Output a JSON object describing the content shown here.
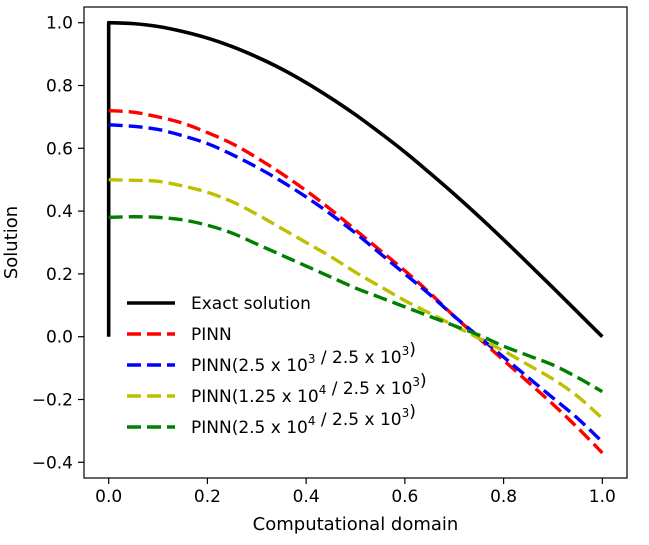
{
  "chart_data": {
    "type": "line",
    "title": "",
    "xlabel": "Computational domain",
    "ylabel": "Solution",
    "xlim": [
      -0.05,
      1.05
    ],
    "ylim": [
      -0.45,
      1.05
    ],
    "xticks": [
      0.0,
      0.2,
      0.4,
      0.6,
      0.8,
      1.0
    ],
    "xtick_labels": [
      "0.0",
      "0.2",
      "0.4",
      "0.6",
      "0.8",
      "1.0"
    ],
    "yticks": [
      -0.4,
      -0.2,
      0.0,
      0.2,
      0.4,
      0.6,
      0.8,
      1.0
    ],
    "ytick_labels": [
      "−0.4",
      "−0.2",
      "0.0",
      "0.2",
      "0.4",
      "0.6",
      "0.8",
      "1.0"
    ],
    "grid": false,
    "legend_position": "lower-left",
    "series": [
      {
        "name": "Exact solution",
        "label_parts": {
          "pre": "Exact solution",
          "sup1": "",
          "mid": "",
          "sup2": "",
          "post": ""
        },
        "color": "#000000",
        "style": "solid",
        "x": [
          0.0,
          0.0,
          0.05,
          0.1,
          0.15,
          0.2,
          0.25,
          0.3,
          0.35,
          0.4,
          0.45,
          0.5,
          0.55,
          0.6,
          0.65,
          0.7,
          0.75,
          0.8,
          0.85,
          0.9,
          0.95,
          1.0
        ],
        "y": [
          0.0,
          1.0,
          0.997,
          0.988,
          0.972,
          0.951,
          0.924,
          0.891,
          0.853,
          0.809,
          0.76,
          0.707,
          0.649,
          0.588,
          0.522,
          0.454,
          0.383,
          0.309,
          0.233,
          0.156,
          0.078,
          0.0
        ]
      },
      {
        "name": "PINN",
        "label_parts": {
          "pre": "PINN",
          "sup1": "",
          "mid": "",
          "sup2": "",
          "post": ""
        },
        "color": "#ff0000",
        "style": "dashed",
        "x": [
          0.0,
          0.05,
          0.1,
          0.15,
          0.2,
          0.25,
          0.3,
          0.35,
          0.4,
          0.45,
          0.5,
          0.55,
          0.6,
          0.65,
          0.7,
          0.75,
          0.8,
          0.85,
          0.9,
          0.95,
          1.0
        ],
        "y": [
          0.72,
          0.715,
          0.7,
          0.68,
          0.65,
          0.615,
          0.57,
          0.52,
          0.465,
          0.405,
          0.34,
          0.275,
          0.21,
          0.14,
          0.065,
          -0.005,
          -0.075,
          -0.145,
          -0.215,
          -0.29,
          -0.37
        ]
      },
      {
        "name": "PINN(2.5 x 10^3 / 2.5 x 10^3)",
        "label_parts": {
          "pre": "PINN(2.5 x 10",
          "sup1": "3",
          "mid": " / 2.5 x 10",
          "sup2": "3",
          "post": ")"
        },
        "color": "#0000ff",
        "style": "dashed",
        "x": [
          0.0,
          0.05,
          0.1,
          0.15,
          0.2,
          0.25,
          0.3,
          0.35,
          0.4,
          0.45,
          0.5,
          0.55,
          0.6,
          0.65,
          0.7,
          0.75,
          0.8,
          0.85,
          0.9,
          0.95,
          1.0
        ],
        "y": [
          0.675,
          0.67,
          0.66,
          0.64,
          0.615,
          0.58,
          0.54,
          0.495,
          0.445,
          0.39,
          0.33,
          0.265,
          0.2,
          0.135,
          0.065,
          0.0,
          -0.065,
          -0.13,
          -0.195,
          -0.26,
          -0.335
        ]
      },
      {
        "name": "PINN(1.25 x 10^4 / 2.5 x 10^3)",
        "label_parts": {
          "pre": "PINN(1.25 x 10",
          "sup1": "4",
          "mid": " / 2.5 x 10",
          "sup2": "3",
          "post": ")"
        },
        "color": "#bfbf00",
        "style": "dashed",
        "x": [
          0.0,
          0.05,
          0.1,
          0.15,
          0.2,
          0.25,
          0.3,
          0.35,
          0.4,
          0.45,
          0.5,
          0.55,
          0.6,
          0.65,
          0.7,
          0.75,
          0.8,
          0.85,
          0.9,
          0.95,
          1.0
        ],
        "y": [
          0.5,
          0.498,
          0.495,
          0.48,
          0.46,
          0.43,
          0.39,
          0.345,
          0.3,
          0.255,
          0.205,
          0.16,
          0.115,
          0.075,
          0.035,
          -0.005,
          -0.045,
          -0.09,
          -0.135,
          -0.19,
          -0.26
        ]
      },
      {
        "name": "PINN(2.5 x 10^4 / 2.5 x 10^3)",
        "label_parts": {
          "pre": "PINN(2.5 x 10",
          "sup1": "4",
          "mid": " / 2.5 x 10",
          "sup2": "3",
          "post": ")"
        },
        "color": "#008000",
        "style": "dashed",
        "x": [
          0.0,
          0.05,
          0.1,
          0.15,
          0.2,
          0.25,
          0.3,
          0.35,
          0.4,
          0.45,
          0.5,
          0.55,
          0.6,
          0.65,
          0.7,
          0.75,
          0.8,
          0.85,
          0.9,
          0.95,
          1.0
        ],
        "y": [
          0.38,
          0.382,
          0.38,
          0.372,
          0.355,
          0.33,
          0.295,
          0.26,
          0.225,
          0.19,
          0.155,
          0.125,
          0.095,
          0.065,
          0.035,
          0.005,
          -0.03,
          -0.06,
          -0.09,
          -0.13,
          -0.175
        ]
      }
    ]
  }
}
